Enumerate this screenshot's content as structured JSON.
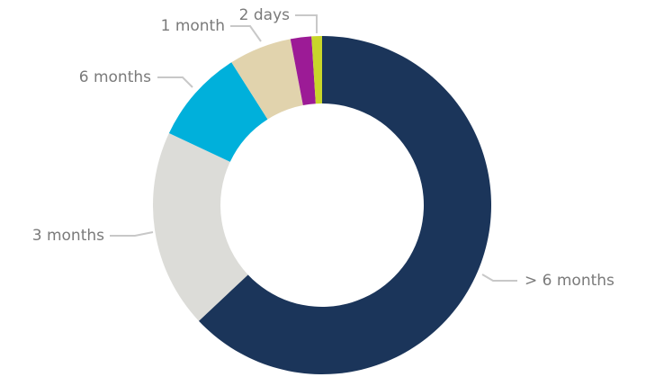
{
  "chart_data": {
    "type": "donut",
    "categories": [
      "> 6 months",
      "3 months",
      "6 months",
      "1 month",
      null,
      "2 days"
    ],
    "values": [
      63,
      19,
      9,
      6,
      2,
      1
    ],
    "colors": [
      "#1b355a",
      "#dcdcd8",
      "#00b0db",
      "#e1d3ad",
      "#9c1b96",
      "#c8d62a"
    ]
  }
}
